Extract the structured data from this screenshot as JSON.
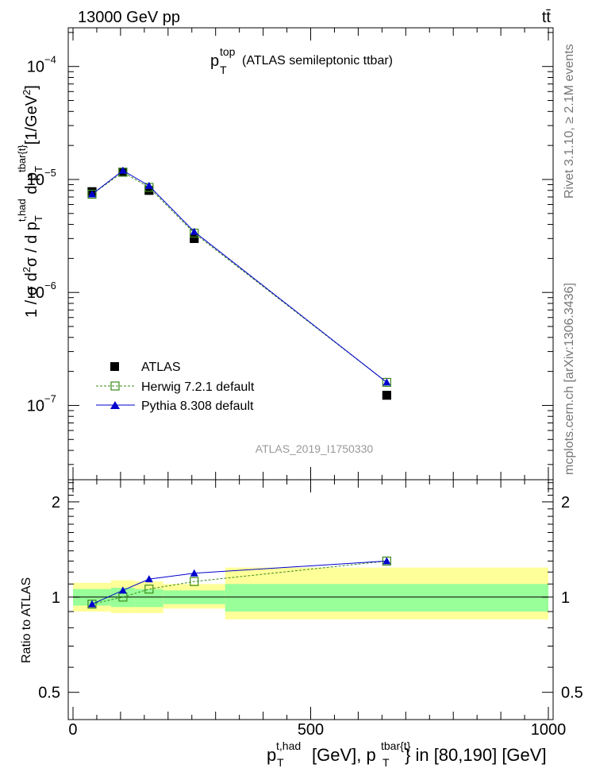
{
  "header": {
    "energy": "13000 GeV pp",
    "process": "tt̄"
  },
  "side": {
    "rivet": "Rivet 3.1.10, ≥ 2.1M events",
    "mcplots": "mcplots.cern.ch [arXiv:1306.3436]"
  },
  "main_plot": {
    "title_symbol": "p",
    "title_sup": "top",
    "title_sub": "T",
    "title_rest": "(ATLAS semileptonic ttbar)",
    "ylabel": "1 / σ d²σ / d p_T^{t,had} d p_T^{tbar{t}} [1/GeV²]",
    "watermark": "ATLAS_2019_I1750330",
    "yticks": [
      {
        "value": 1e-07,
        "label": "10",
        "exp": "−7"
      },
      {
        "value": 1e-06,
        "label": "10",
        "exp": "−6"
      },
      {
        "value": 1e-05,
        "label": "10",
        "exp": "−5"
      },
      {
        "value": 0.0001,
        "label": "10",
        "exp": "−4"
      }
    ]
  },
  "ratio_plot": {
    "ylabel": "Ratio to ATLAS",
    "yticks": [
      {
        "value": 0.5,
        "label": "0.5"
      },
      {
        "value": 1,
        "label": "1"
      },
      {
        "value": 2,
        "label": "2"
      }
    ]
  },
  "xaxis": {
    "label": "p_T^{t,had} [GeV], p_T^{tbar{t}} in [80,190] [GeV]",
    "ticks": [
      {
        "value": 0,
        "label": "0"
      },
      {
        "value": 500,
        "label": "500"
      },
      {
        "value": 1000,
        "label": "1000"
      }
    ]
  },
  "legend": {
    "items": [
      {
        "label": "ATLAS",
        "style": "data",
        "color": "#000000"
      },
      {
        "label": "Herwig 7.2.1 default",
        "style": "herwig",
        "color": "#3a8a1a"
      },
      {
        "label": "Pythia 8.308 default",
        "style": "pythia",
        "color": "#0000cc"
      }
    ]
  },
  "chart_data": {
    "type": "line",
    "xlim": [
      -10,
      1010
    ],
    "ylim_main": [
      2.2e-08,
      0.00022
    ],
    "ylog_main": true,
    "ylim_ratio": [
      0.41,
      2.35
    ],
    "ylog_ratio": true,
    "bins": [
      [
        0,
        80
      ],
      [
        80,
        130
      ],
      [
        130,
        190
      ],
      [
        190,
        320
      ],
      [
        320,
        1000
      ]
    ],
    "x": [
      40,
      105,
      160,
      255,
      660
    ],
    "series": [
      {
        "name": "ATLAS",
        "values": [
          7.8e-06,
          1.16e-05,
          8e-06,
          3e-06,
          1.23e-07
        ],
        "ratio": [
          1,
          1,
          1,
          1,
          1
        ],
        "band_inner": [
          [
            0.94,
            1.06
          ],
          [
            0.93,
            1.07
          ],
          [
            0.93,
            1.06
          ],
          [
            0.95,
            1.05
          ],
          [
            0.9,
            1.1
          ]
        ],
        "band_outer": [
          [
            0.9,
            1.11
          ],
          [
            0.89,
            1.13
          ],
          [
            0.89,
            1.12
          ],
          [
            0.92,
            1.1
          ],
          [
            0.85,
            1.24
          ]
        ]
      },
      {
        "name": "Herwig 7.2.1 default",
        "values": [
          7.4e-06,
          1.16e-05,
          8.5e-06,
          3.35e-06,
          1.6e-07
        ],
        "ratio": [
          0.95,
          1.0,
          1.06,
          1.12,
          1.3
        ]
      },
      {
        "name": "Pythia 8.308 default",
        "values": [
          7.4e-06,
          1.2e-05,
          8.8e-06,
          3.45e-06,
          1.6e-07
        ],
        "ratio": [
          0.95,
          1.05,
          1.14,
          1.19,
          1.3
        ]
      }
    ],
    "colors": {
      "data": "#000000",
      "herwig": "#3a8a1a",
      "pythia": "#0000cc",
      "band_inner": "#99ff99",
      "band_outer": "#ffff99"
    }
  }
}
